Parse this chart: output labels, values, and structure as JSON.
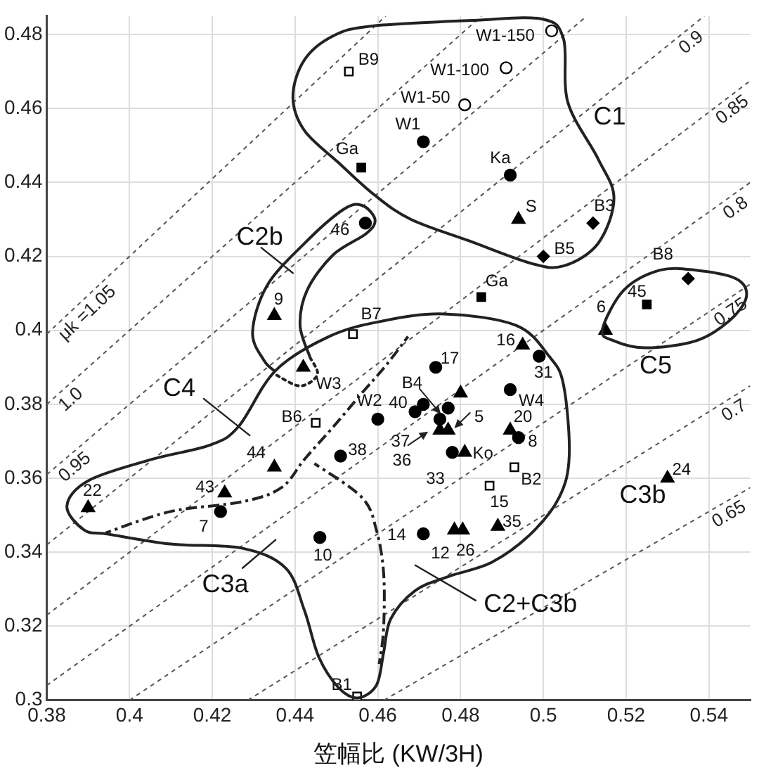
{
  "chart_data": {
    "type": "scatter",
    "xlabel": "笠幅比 (KW/3H)",
    "xlim": [
      0.38,
      0.55
    ],
    "ylim": [
      0.3,
      0.485
    ],
    "xticks": [
      0.38,
      0.4,
      0.42,
      0.44,
      0.46,
      0.48,
      0.5,
      0.52,
      0.54
    ],
    "yticks": [
      0.3,
      0.32,
      0.34,
      0.36,
      0.38,
      0.4,
      0.42,
      0.44,
      0.46,
      0.48
    ],
    "grid": true,
    "legend": false,
    "series": [
      {
        "type": "line",
        "name": "μk =1.05",
        "color": "#555555",
        "line_style": "dashed",
        "marker": "none",
        "x": [
          0.38,
          0.4619
        ],
        "values": [
          0.399,
          0.485
        ]
      },
      {
        "type": "line",
        "name": "1.0",
        "color": "#555555",
        "line_style": "dashed",
        "marker": "none",
        "x": [
          0.38,
          0.485
        ],
        "values": [
          0.38,
          0.485
        ]
      },
      {
        "type": "line",
        "name": "0.95",
        "color": "#555555",
        "line_style": "dashed",
        "marker": "none",
        "x": [
          0.38,
          0.5105
        ],
        "values": [
          0.361,
          0.485
        ]
      },
      {
        "type": "line",
        "name": "0.9",
        "color": "#555555",
        "line_style": "dashed",
        "marker": "none",
        "x": [
          0.38,
          0.5389
        ],
        "values": [
          0.342,
          0.485
        ]
      },
      {
        "type": "line",
        "name": "0.85",
        "color": "#555555",
        "line_style": "dashed",
        "marker": "none",
        "x": [
          0.38,
          0.55
        ],
        "values": [
          0.323,
          0.4675
        ]
      },
      {
        "type": "line",
        "name": "0.8",
        "color": "#555555",
        "line_style": "dashed",
        "marker": "none",
        "x": [
          0.38,
          0.55
        ],
        "values": [
          0.304,
          0.44
        ]
      },
      {
        "type": "line",
        "name": "0.75",
        "color": "#555555",
        "line_style": "dashed",
        "marker": "none",
        "x": [
          0.4,
          0.55
        ],
        "values": [
          0.3,
          0.4125
        ]
      },
      {
        "type": "line",
        "name": "0.7",
        "color": "#555555",
        "line_style": "dashed",
        "marker": "none",
        "x": [
          0.4286,
          0.55
        ],
        "values": [
          0.3,
          0.385
        ]
      },
      {
        "type": "line",
        "name": "0.65",
        "color": "#555555",
        "line_style": "dashed",
        "marker": "none",
        "x": [
          0.4615,
          0.55
        ],
        "values": [
          0.3,
          0.3575
        ]
      },
      {
        "color": "#000000",
        "marker": "circle",
        "x": [
          0.471,
          0.492,
          0.457,
          0.474,
          0.499,
          0.492,
          0.471,
          0.469,
          0.477,
          0.475,
          0.46,
          0.451,
          0.494,
          0.478,
          0.422,
          0.446,
          0.471
        ],
        "values": [
          0.451,
          0.442,
          0.429,
          0.39,
          0.393,
          0.384,
          0.38,
          0.378,
          0.379,
          0.376,
          0.376,
          0.366,
          0.371,
          0.367,
          0.351,
          0.344,
          0.345
        ]
      },
      {
        "color": "#000000",
        "marker": "triangle",
        "x": [
          0.494,
          0.435,
          0.442,
          0.495,
          0.515,
          0.48,
          0.475,
          0.477,
          0.492,
          0.481,
          0.4785,
          0.4805,
          0.489,
          0.53,
          0.435,
          0.423,
          0.39
        ],
        "values": [
          0.43,
          0.404,
          0.39,
          0.396,
          0.4,
          0.383,
          0.373,
          0.373,
          0.373,
          0.367,
          0.346,
          0.346,
          0.347,
          0.36,
          0.363,
          0.356,
          0.352
        ]
      },
      {
        "color": "#000000",
        "marker": "square",
        "x": [
          0.456,
          0.485,
          0.525
        ],
        "values": [
          0.444,
          0.409,
          0.407
        ]
      },
      {
        "color": "#ffffff",
        "marker": "square",
        "x": [
          0.453,
          0.454,
          0.445,
          0.455,
          0.493,
          0.487
        ],
        "values": [
          0.47,
          0.399,
          0.375,
          0.301,
          0.363,
          0.358
        ]
      },
      {
        "color": "#000000",
        "marker": "diamond",
        "x": [
          0.512,
          0.5,
          0.535
        ],
        "values": [
          0.429,
          0.42,
          0.414
        ]
      },
      {
        "color": "#ffffff",
        "marker": "circle",
        "x": [
          0.481,
          0.491,
          0.502
        ],
        "values": [
          0.461,
          0.471,
          0.481
        ]
      }
    ],
    "annotations": [
      {
        "text": "W1",
        "x": 0.471,
        "y": 0.451
      },
      {
        "text": "Ka",
        "x": 0.492,
        "y": 0.442
      },
      {
        "text": "46",
        "x": 0.457,
        "y": 0.429
      },
      {
        "text": "17",
        "x": 0.474,
        "y": 0.39
      },
      {
        "text": "31",
        "x": 0.499,
        "y": 0.393
      },
      {
        "text": "W4",
        "x": 0.492,
        "y": 0.384
      },
      {
        "text": "B4",
        "x": 0.471,
        "y": 0.38
      },
      {
        "text": "40",
        "x": 0.469,
        "y": 0.378
      },
      {
        "text": "37",
        "x": 0.475,
        "y": 0.376
      },
      {
        "text": "W2",
        "x": 0.46,
        "y": 0.376
      },
      {
        "text": "38",
        "x": 0.451,
        "y": 0.366
      },
      {
        "text": "8",
        "x": 0.494,
        "y": 0.371
      },
      {
        "text": "33",
        "x": 0.478,
        "y": 0.367
      },
      {
        "text": "7",
        "x": 0.422,
        "y": 0.351
      },
      {
        "text": "10",
        "x": 0.446,
        "y": 0.344
      },
      {
        "text": "14",
        "x": 0.471,
        "y": 0.345
      },
      {
        "text": "S",
        "x": 0.494,
        "y": 0.43
      },
      {
        "text": "9",
        "x": 0.435,
        "y": 0.404
      },
      {
        "text": "W3",
        "x": 0.442,
        "y": 0.39
      },
      {
        "text": "16",
        "x": 0.495,
        "y": 0.396
      },
      {
        "text": "6",
        "x": 0.515,
        "y": 0.4
      },
      {
        "text": "36",
        "x": 0.475,
        "y": 0.373
      },
      {
        "text": "5",
        "x": 0.477,
        "y": 0.373
      },
      {
        "text": "20",
        "x": 0.492,
        "y": 0.373
      },
      {
        "text": "Ko",
        "x": 0.481,
        "y": 0.367
      },
      {
        "text": "12",
        "x": 0.4785,
        "y": 0.346
      },
      {
        "text": "26",
        "x": 0.4805,
        "y": 0.346
      },
      {
        "text": "35",
        "x": 0.489,
        "y": 0.347
      },
      {
        "text": "24",
        "x": 0.53,
        "y": 0.36
      },
      {
        "text": "44",
        "x": 0.435,
        "y": 0.363
      },
      {
        "text": "43",
        "x": 0.423,
        "y": 0.356
      },
      {
        "text": "22",
        "x": 0.39,
        "y": 0.352
      },
      {
        "text": "Ga",
        "x": 0.456,
        "y": 0.444
      },
      {
        "text": "Ga",
        "x": 0.485,
        "y": 0.409
      },
      {
        "text": "45",
        "x": 0.525,
        "y": 0.407
      },
      {
        "text": "B9",
        "x": 0.453,
        "y": 0.47
      },
      {
        "text": "B7",
        "x": 0.454,
        "y": 0.399
      },
      {
        "text": "B6",
        "x": 0.445,
        "y": 0.375
      },
      {
        "text": "B1",
        "x": 0.455,
        "y": 0.301
      },
      {
        "text": "B2",
        "x": 0.493,
        "y": 0.363
      },
      {
        "text": "15",
        "x": 0.487,
        "y": 0.358
      },
      {
        "text": "B3",
        "x": 0.512,
        "y": 0.429
      },
      {
        "text": "B5",
        "x": 0.5,
        "y": 0.42
      },
      {
        "text": "B8",
        "x": 0.535,
        "y": 0.414
      },
      {
        "text": "W1-50",
        "x": 0.481,
        "y": 0.461
      },
      {
        "text": "W1-100",
        "x": 0.491,
        "y": 0.471
      },
      {
        "text": "W1-150",
        "x": 0.502,
        "y": 0.481
      },
      "C2b",
      "C1",
      "C5",
      "C3b",
      "C2+C3b",
      "C4",
      "C3a"
    ]
  }
}
